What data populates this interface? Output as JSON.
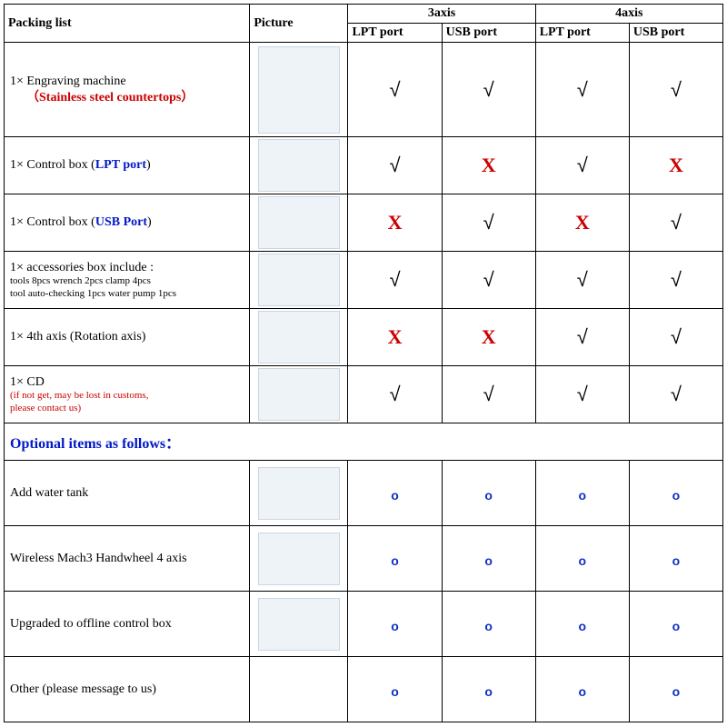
{
  "headers": {
    "packing": "Packing list",
    "picture": "Picture",
    "group3": "3axis",
    "group4": "4axis",
    "lpt": "LPT port",
    "usb": "USB port"
  },
  "marks": {
    "check": "√",
    "cross": "X",
    "opt": "o"
  },
  "rows": [
    {
      "label_main": "1× Engraving machine",
      "label_sub": "（Stainless steel countertops）",
      "sub_class": "red bold",
      "pic": "cnc-machine",
      "cells": [
        "check",
        "check",
        "check",
        "check"
      ],
      "row_class": "row-tall",
      "pic_class": "pic-tall"
    },
    {
      "label_main": "1× Control box (",
      "label_blue": "LPT port",
      "label_tail": ")",
      "pic": "control-box-lpt",
      "cells": [
        "check",
        "cross",
        "check",
        "cross"
      ],
      "row_class": "row-med"
    },
    {
      "label_main": "1× Control box (",
      "label_blue": "USB Port",
      "label_tail": ")",
      "pic": "control-box-usb",
      "cells": [
        "cross",
        "check",
        "cross",
        "check"
      ],
      "row_class": "row-med"
    },
    {
      "label_main_line1": "1× accessories  box      include :",
      "label_small_line2": "tools  8pcs        wrench 2pcs        clamp 4pcs",
      "label_small_line3": "tool auto-checking 1pcs              water pump 1pcs",
      "pic": "accessories-box",
      "cells": [
        "check",
        "check",
        "check",
        "check"
      ],
      "row_class": "row-med"
    },
    {
      "label_plain": "1× 4th axis (Rotation axis)",
      "pic": "rotation-axis",
      "cells": [
        "cross",
        "cross",
        "check",
        "check"
      ],
      "row_class": "row-med"
    },
    {
      "label_main": "1× CD",
      "label_red_small": "(if not get, may be lost in customs,\nplease contact us)",
      "pic": "cd",
      "cells": [
        "check",
        "check",
        "check",
        "check"
      ],
      "row_class": "row-med"
    }
  ],
  "section_title": "Optional items as follows：",
  "optional": [
    {
      "label": "Add water tank",
      "pic": "water-tank",
      "cells": [
        "opt",
        "opt",
        "opt",
        "opt"
      ]
    },
    {
      "label": "Wireless Mach3 Handwheel 4 axis",
      "pic": "handwheel",
      "cells": [
        "opt",
        "opt",
        "opt",
        "opt"
      ]
    },
    {
      "label": "Upgraded to offline control box",
      "pic": "offline-box",
      "cells": [
        "opt",
        "opt",
        "opt",
        "opt"
      ]
    },
    {
      "label": "Other (please message to us)",
      "pic": "",
      "cells": [
        "opt",
        "opt",
        "opt",
        "opt"
      ]
    }
  ]
}
